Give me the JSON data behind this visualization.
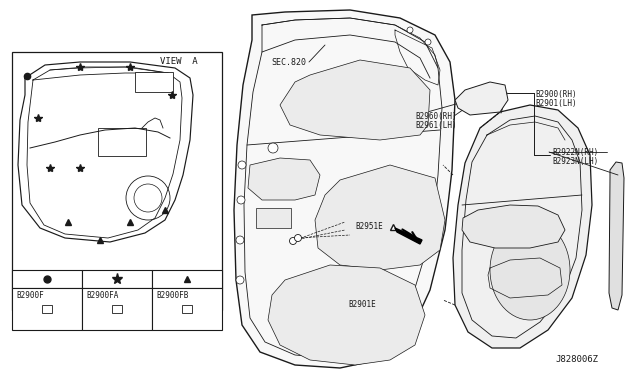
{
  "bg_color": "#ffffff",
  "line_color": "#1a1a1a",
  "labels": {
    "view_a": "VIEW  A",
    "sec_820": "SEC.820",
    "b2900f": "B2900F",
    "b2900fa": "B2900FA",
    "b2900fb": "B2900FB",
    "b2951e": "B2951E",
    "b2901e": "B2901E",
    "b2960rh": "B2960(RH)",
    "b2961lh": "B2961(LH)",
    "b2900rh": "B2900(RH)",
    "b2901lh": "B2901(LH)",
    "b2922n_rh": "B2922N(RH)",
    "b2923n_lh": "B2923N(LH)",
    "diagram_id": "J828006Z"
  }
}
